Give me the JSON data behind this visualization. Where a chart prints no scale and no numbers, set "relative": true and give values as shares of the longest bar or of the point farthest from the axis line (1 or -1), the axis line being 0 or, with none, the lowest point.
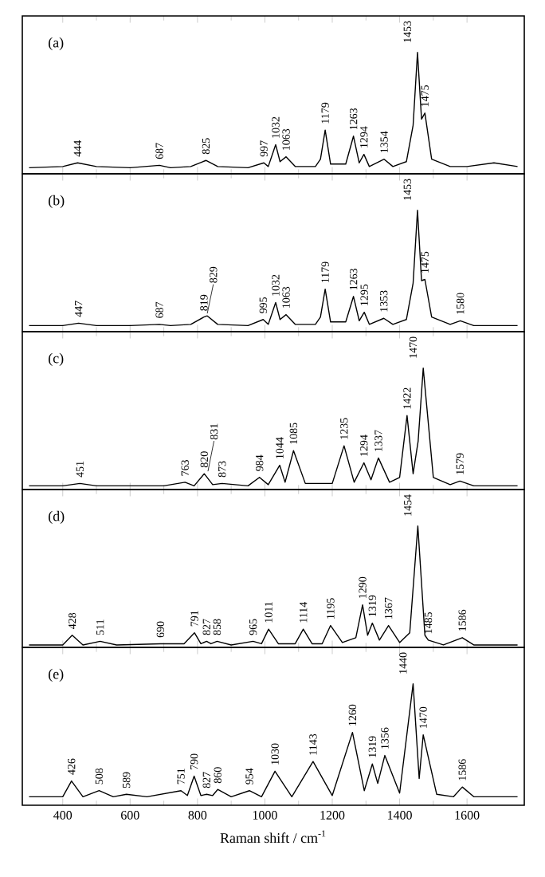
{
  "chart_data": [
    {
      "type": "line",
      "title": "(a)",
      "relative": true,
      "color": "#000000",
      "xlim": [
        280,
        1770
      ],
      "xticks": [
        400,
        600,
        800,
        1000,
        1200,
        1400,
        1600
      ],
      "tick_labels": false,
      "x": [
        300,
        400,
        444,
        500,
        600,
        687,
        720,
        780,
        825,
        860,
        950,
        997,
        1010,
        1032,
        1045,
        1063,
        1090,
        1150,
        1165,
        1179,
        1195,
        1240,
        1263,
        1280,
        1294,
        1310,
        1354,
        1380,
        1420,
        1440,
        1453,
        1465,
        1475,
        1495,
        1550,
        1600,
        1680,
        1750
      ],
      "values": [
        0.05,
        0.06,
        0.09,
        0.06,
        0.05,
        0.07,
        0.05,
        0.06,
        0.11,
        0.06,
        0.05,
        0.09,
        0.06,
        0.24,
        0.1,
        0.14,
        0.06,
        0.06,
        0.12,
        0.36,
        0.08,
        0.08,
        0.31,
        0.09,
        0.16,
        0.06,
        0.12,
        0.06,
        0.1,
        0.4,
        1.0,
        0.45,
        0.5,
        0.12,
        0.06,
        0.06,
        0.09,
        0.06
      ],
      "annotations": [
        {
          "text": "444",
          "x": 444,
          "y": 0.09
        },
        {
          "text": "687",
          "x": 687,
          "y": 0.07
        },
        {
          "text": "825",
          "x": 825,
          "y": 0.11
        },
        {
          "text": "997",
          "x": 997,
          "y": 0.09
        },
        {
          "text": "1032",
          "x": 1032,
          "y": 0.24
        },
        {
          "text": "1063",
          "x": 1063,
          "y": 0.14
        },
        {
          "text": "1179",
          "x": 1179,
          "y": 0.36
        },
        {
          "text": "1263",
          "x": 1263,
          "y": 0.31
        },
        {
          "text": "1294",
          "x": 1294,
          "y": 0.16
        },
        {
          "text": "1354",
          "x": 1354,
          "y": 0.12
        },
        {
          "text": "1453",
          "x": 1453,
          "y": 1.0
        },
        {
          "text": "1475",
          "x": 1475,
          "y": 0.5
        }
      ]
    },
    {
      "type": "line",
      "title": "(b)",
      "relative": true,
      "color": "#000000",
      "xlim": [
        280,
        1770
      ],
      "xticks": [
        400,
        600,
        800,
        1000,
        1200,
        1400,
        1600
      ],
      "tick_labels": false,
      "x": [
        300,
        400,
        447,
        500,
        600,
        687,
        720,
        780,
        819,
        829,
        860,
        950,
        995,
        1010,
        1032,
        1045,
        1063,
        1090,
        1150,
        1165,
        1179,
        1195,
        1240,
        1263,
        1280,
        1295,
        1310,
        1353,
        1380,
        1420,
        1440,
        1453,
        1465,
        1475,
        1495,
        1550,
        1580,
        1620,
        1750
      ],
      "values": [
        0.05,
        0.05,
        0.07,
        0.05,
        0.05,
        0.06,
        0.05,
        0.06,
        0.12,
        0.13,
        0.06,
        0.05,
        0.1,
        0.06,
        0.24,
        0.1,
        0.14,
        0.06,
        0.06,
        0.12,
        0.35,
        0.08,
        0.08,
        0.29,
        0.09,
        0.16,
        0.06,
        0.11,
        0.06,
        0.1,
        0.4,
        1.0,
        0.42,
        0.43,
        0.12,
        0.06,
        0.09,
        0.05,
        0.05
      ],
      "annotations": [
        {
          "text": "447",
          "x": 447,
          "y": 0.07
        },
        {
          "text": "687",
          "x": 687,
          "y": 0.06
        },
        {
          "text": "819",
          "x": 819,
          "y": 0.12
        },
        {
          "text": "829",
          "x": 829,
          "y": 0.13
        },
        {
          "text": "995",
          "x": 995,
          "y": 0.1
        },
        {
          "text": "1032",
          "x": 1032,
          "y": 0.24
        },
        {
          "text": "1063",
          "x": 1063,
          "y": 0.14
        },
        {
          "text": "1179",
          "x": 1179,
          "y": 0.35
        },
        {
          "text": "1263",
          "x": 1263,
          "y": 0.29
        },
        {
          "text": "1295",
          "x": 1295,
          "y": 0.16
        },
        {
          "text": "1353",
          "x": 1353,
          "y": 0.11
        },
        {
          "text": "1453",
          "x": 1453,
          "y": 1.0
        },
        {
          "text": "1475",
          "x": 1475,
          "y": 0.43
        },
        {
          "text": "1580",
          "x": 1580,
          "y": 0.09
        }
      ]
    },
    {
      "type": "line",
      "title": "(c)",
      "relative": true,
      "color": "#000000",
      "xlim": [
        280,
        1770
      ],
      "xticks": [
        400,
        600,
        800,
        1000,
        1200,
        1400,
        1600
      ],
      "tick_labels": false,
      "x": [
        300,
        400,
        451,
        500,
        700,
        763,
        790,
        820,
        845,
        873,
        950,
        984,
        1010,
        1044,
        1060,
        1085,
        1120,
        1200,
        1235,
        1265,
        1294,
        1315,
        1337,
        1370,
        1400,
        1422,
        1440,
        1455,
        1470,
        1500,
        1550,
        1579,
        1620,
        1750
      ],
      "values": [
        0.03,
        0.03,
        0.05,
        0.03,
        0.03,
        0.06,
        0.03,
        0.13,
        0.04,
        0.05,
        0.03,
        0.1,
        0.04,
        0.2,
        0.06,
        0.32,
        0.05,
        0.05,
        0.36,
        0.06,
        0.22,
        0.08,
        0.26,
        0.06,
        0.1,
        0.61,
        0.13,
        0.4,
        1.0,
        0.1,
        0.04,
        0.07,
        0.03,
        0.03
      ],
      "annotations": [
        {
          "text": "451",
          "x": 451,
          "y": 0.05
        },
        {
          "text": "763",
          "x": 763,
          "y": 0.06
        },
        {
          "text": "820",
          "x": 820,
          "y": 0.13
        },
        {
          "text": "831",
          "x": 831,
          "y": 0.13
        },
        {
          "text": "873",
          "x": 873,
          "y": 0.05
        },
        {
          "text": "984",
          "x": 984,
          "y": 0.1
        },
        {
          "text": "1044",
          "x": 1044,
          "y": 0.2
        },
        {
          "text": "1085",
          "x": 1085,
          "y": 0.32
        },
        {
          "text": "1235",
          "x": 1235,
          "y": 0.36
        },
        {
          "text": "1294",
          "x": 1294,
          "y": 0.22
        },
        {
          "text": "1337",
          "x": 1337,
          "y": 0.26
        },
        {
          "text": "1422",
          "x": 1422,
          "y": 0.61
        },
        {
          "text": "1470",
          "x": 1470,
          "y": 1.0
        },
        {
          "text": "1579",
          "x": 1579,
          "y": 0.07
        }
      ]
    },
    {
      "type": "line",
      "title": "(d)",
      "relative": true,
      "color": "#000000",
      "xlim": [
        280,
        1770
      ],
      "xticks": [
        400,
        600,
        800,
        1000,
        1200,
        1400,
        1600
      ],
      "tick_labels": false,
      "x": [
        300,
        400,
        428,
        460,
        511,
        560,
        690,
        760,
        791,
        810,
        827,
        840,
        858,
        900,
        965,
        990,
        1011,
        1040,
        1090,
        1114,
        1140,
        1170,
        1195,
        1230,
        1270,
        1290,
        1305,
        1319,
        1340,
        1367,
        1400,
        1430,
        1454,
        1475,
        1485,
        1530,
        1586,
        1620,
        1750
      ],
      "values": [
        0.02,
        0.02,
        0.1,
        0.02,
        0.05,
        0.02,
        0.03,
        0.03,
        0.12,
        0.03,
        0.05,
        0.03,
        0.05,
        0.02,
        0.05,
        0.03,
        0.15,
        0.03,
        0.03,
        0.15,
        0.03,
        0.03,
        0.18,
        0.04,
        0.08,
        0.35,
        0.1,
        0.2,
        0.06,
        0.18,
        0.04,
        0.12,
        1.0,
        0.1,
        0.06,
        0.02,
        0.08,
        0.02,
        0.02
      ],
      "annotations": [
        {
          "text": "428",
          "x": 428,
          "y": 0.1
        },
        {
          "text": "511",
          "x": 511,
          "y": 0.05
        },
        {
          "text": "690",
          "x": 690,
          "y": 0.03
        },
        {
          "text": "791",
          "x": 791,
          "y": 0.12
        },
        {
          "text": "827",
          "x": 827,
          "y": 0.05
        },
        {
          "text": "858",
          "x": 858,
          "y": 0.05
        },
        {
          "text": "965",
          "x": 965,
          "y": 0.05
        },
        {
          "text": "1011",
          "x": 1011,
          "y": 0.15
        },
        {
          "text": "1114",
          "x": 1114,
          "y": 0.15
        },
        {
          "text": "1195",
          "x": 1195,
          "y": 0.18
        },
        {
          "text": "1290",
          "x": 1290,
          "y": 0.35
        },
        {
          "text": "1319",
          "x": 1319,
          "y": 0.2
        },
        {
          "text": "1367",
          "x": 1367,
          "y": 0.18
        },
        {
          "text": "1454",
          "x": 1454,
          "y": 1.0
        },
        {
          "text": "1485",
          "x": 1485,
          "y": 0.06
        },
        {
          "text": "1586",
          "x": 1586,
          "y": 0.08
        }
      ]
    },
    {
      "type": "line",
      "title": "(e)",
      "relative": true,
      "color": "#000000",
      "xlim": [
        280,
        1770
      ],
      "xticks": [
        400,
        600,
        800,
        1000,
        1200,
        1400,
        1600
      ],
      "tick_labels": "x",
      "xlabel": "Raman shift / cm$^{-1}$",
      "x": [
        300,
        400,
        426,
        460,
        508,
        550,
        589,
        650,
        751,
        770,
        790,
        810,
        827,
        845,
        860,
        900,
        954,
        990,
        1030,
        1080,
        1143,
        1200,
        1260,
        1295,
        1319,
        1335,
        1356,
        1400,
        1440,
        1458,
        1470,
        1510,
        1560,
        1586,
        1620,
        1750
      ],
      "values": [
        0.07,
        0.07,
        0.2,
        0.07,
        0.12,
        0.07,
        0.09,
        0.07,
        0.12,
        0.08,
        0.24,
        0.08,
        0.09,
        0.08,
        0.13,
        0.07,
        0.12,
        0.07,
        0.28,
        0.07,
        0.36,
        0.08,
        0.6,
        0.12,
        0.34,
        0.18,
        0.41,
        0.1,
        1.0,
        0.22,
        0.58,
        0.09,
        0.07,
        0.15,
        0.07,
        0.07
      ],
      "annotations": [
        {
          "text": "426",
          "x": 426,
          "y": 0.2
        },
        {
          "text": "508",
          "x": 508,
          "y": 0.12
        },
        {
          "text": "589",
          "x": 589,
          "y": 0.09
        },
        {
          "text": "751",
          "x": 751,
          "y": 0.12
        },
        {
          "text": "790",
          "x": 790,
          "y": 0.24
        },
        {
          "text": "827",
          "x": 827,
          "y": 0.09
        },
        {
          "text": "860",
          "x": 860,
          "y": 0.13
        },
        {
          "text": "954",
          "x": 954,
          "y": 0.12
        },
        {
          "text": "1030",
          "x": 1030,
          "y": 0.28
        },
        {
          "text": "1143",
          "x": 1143,
          "y": 0.36
        },
        {
          "text": "1260",
          "x": 1260,
          "y": 0.6
        },
        {
          "text": "1319",
          "x": 1319,
          "y": 0.34
        },
        {
          "text": "1356",
          "x": 1356,
          "y": 0.41
        },
        {
          "text": "1440",
          "x": 1440,
          "y": 1.0
        },
        {
          "text": "1470",
          "x": 1470,
          "y": 0.58
        },
        {
          "text": "1586",
          "x": 1586,
          "y": 0.15
        }
      ]
    }
  ]
}
